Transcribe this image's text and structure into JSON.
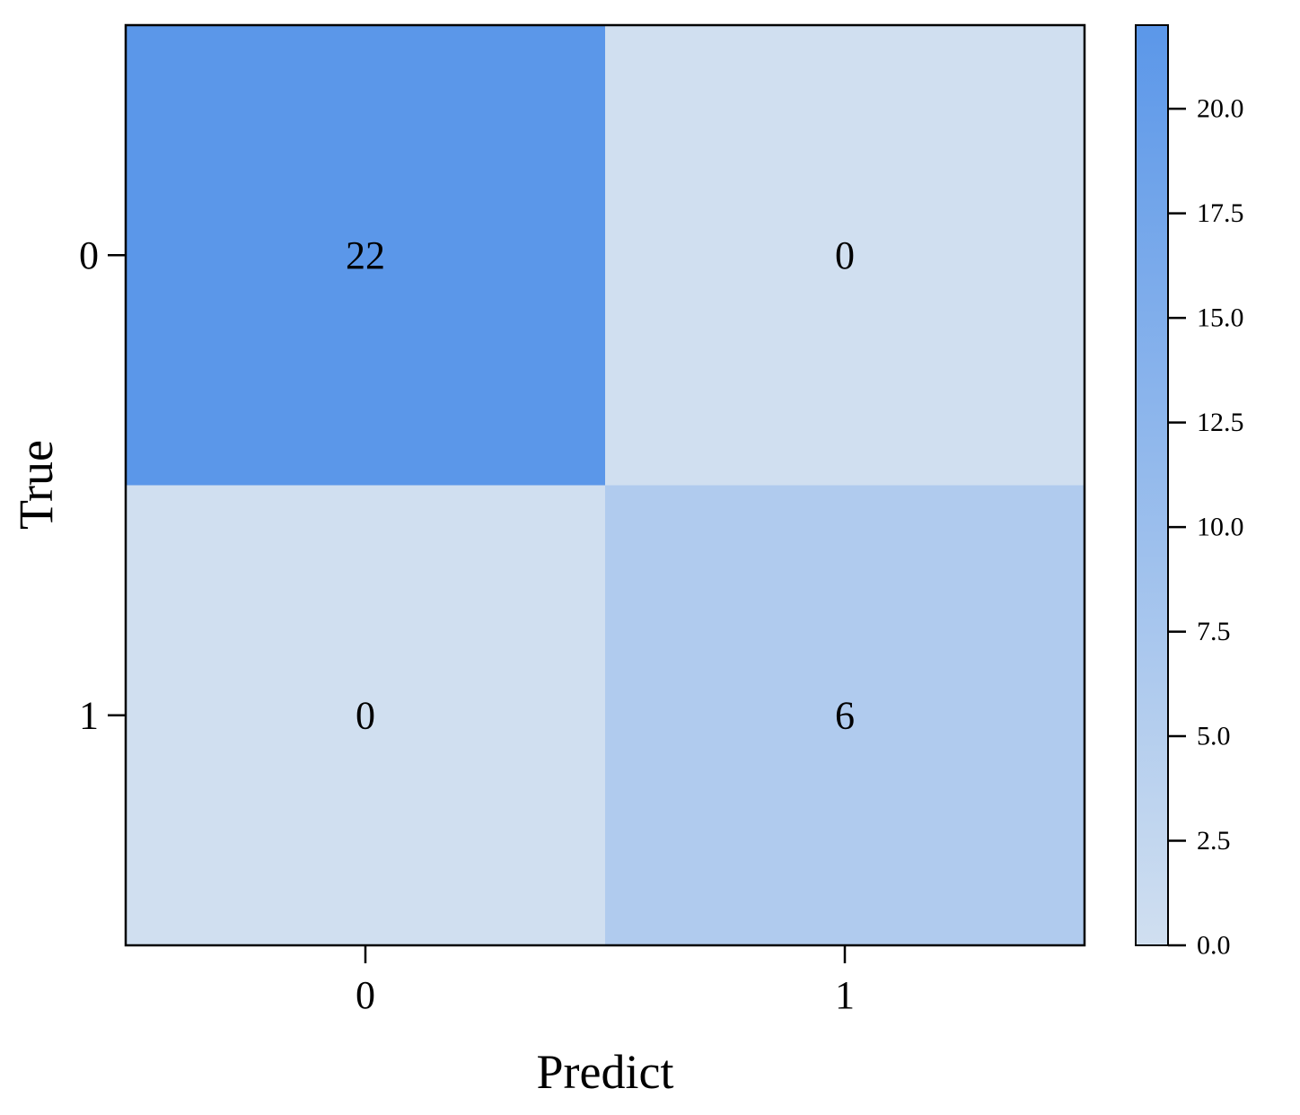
{
  "chart_data": {
    "type": "heatmap",
    "title": "",
    "xlabel": "Predict",
    "ylabel": "True",
    "x_categories": [
      "0",
      "1"
    ],
    "y_categories": [
      "0",
      "1"
    ],
    "values": [
      [
        22,
        0
      ],
      [
        0,
        6
      ]
    ],
    "colorbar": {
      "min": 0.0,
      "max": 22,
      "ticks": [
        0.0,
        2.5,
        5.0,
        7.5,
        10.0,
        12.5,
        15.0,
        17.5,
        20.0
      ],
      "tick_labels": [
        "0.0",
        "2.5",
        "5.0",
        "7.5",
        "10.0",
        "12.5",
        "15.0",
        "17.5",
        "20.0"
      ],
      "color_low": "#d0dff0",
      "color_high": "#5b97e9"
    },
    "grid": false,
    "legend": "colorbar-right"
  }
}
